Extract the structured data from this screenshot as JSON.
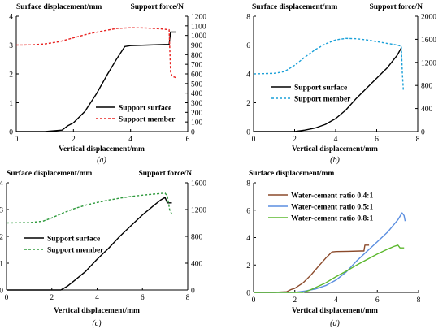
{
  "chart_data": [
    {
      "id": "a",
      "type": "line",
      "caption": "(a)",
      "xlabel": "Vertical displacement/mm",
      "ylabel_left": "Surface displacement/mm",
      "ylabel_right": "Support force/N",
      "xlim": [
        0,
        6
      ],
      "xticks": [
        "0",
        "2",
        "4",
        "6"
      ],
      "ylim_left": [
        0,
        4
      ],
      "yticks_left": [
        "0",
        "1",
        "2",
        "3",
        "4"
      ],
      "ylim_right": [
        0,
        1200
      ],
      "yticks_right": [
        "0",
        "100",
        "200",
        "300",
        "400",
        "500",
        "600",
        "700",
        "800",
        "900",
        "1000",
        "1100",
        "1200"
      ],
      "grid": false,
      "legend_position": "bottom-right",
      "series": [
        {
          "name": "Support surface",
          "axis": "left",
          "color": "#000000",
          "dash": "solid",
          "x": [
            0,
            1,
            1.6,
            1.8,
            2.0,
            2.4,
            2.8,
            3.2,
            3.5,
            3.8,
            4.0,
            4.6,
            5.2,
            5.35,
            5.4,
            5.6
          ],
          "y": [
            0,
            0,
            0.05,
            0.2,
            0.3,
            0.7,
            1.3,
            2.0,
            2.5,
            2.95,
            2.98,
            3.0,
            3.02,
            3.02,
            3.45,
            3.45
          ]
        },
        {
          "name": "Support member",
          "axis": "right",
          "color": "#e8211f",
          "dash": "dashed",
          "x": [
            0,
            0.5,
            1,
            1.5,
            2,
            2.5,
            3,
            3.5,
            4,
            4.5,
            5,
            5.35,
            5.4,
            5.45,
            5.6
          ],
          "y": [
            900,
            902,
            912,
            935,
            975,
            1015,
            1045,
            1072,
            1080,
            1078,
            1070,
            1060,
            620,
            575,
            560
          ]
        }
      ]
    },
    {
      "id": "b",
      "type": "line",
      "caption": "(b)",
      "xlabel": "Vertical displacement/mm",
      "ylabel_left": "Surface displacement/mm",
      "ylabel_right": "Support force/N",
      "xlim": [
        0,
        8
      ],
      "xticks": [
        "0",
        "2",
        "4",
        "6",
        "8"
      ],
      "ylim_left": [
        0,
        8
      ],
      "yticks_left": [
        "0",
        "2",
        "4",
        "6",
        "8"
      ],
      "ylim_right": [
        0,
        2000
      ],
      "yticks_right": [
        "0",
        "400",
        "800",
        "1200",
        "1600",
        "2000"
      ],
      "grid": false,
      "legend_position": "bottom-center",
      "series": [
        {
          "name": "Support surface",
          "axis": "left",
          "color": "#000000",
          "dash": "solid",
          "x": [
            0,
            2,
            2.5,
            3,
            3.5,
            4,
            4.5,
            5,
            5.5,
            6,
            6.5,
            7,
            7.2
          ],
          "y": [
            0,
            0,
            0.1,
            0.25,
            0.5,
            0.9,
            1.5,
            2.3,
            3.0,
            3.7,
            4.4,
            5.3,
            5.8
          ]
        },
        {
          "name": "Support member",
          "axis": "right",
          "color": "#1aa0d8",
          "dash": "dashed",
          "x": [
            0,
            1,
            1.5,
            2,
            2.5,
            3,
            3.5,
            4,
            4.5,
            5,
            5.5,
            6,
            6.5,
            7,
            7.2,
            7.25,
            7.3
          ],
          "y": [
            1000,
            1010,
            1040,
            1150,
            1290,
            1420,
            1520,
            1590,
            1615,
            1610,
            1590,
            1560,
            1530,
            1500,
            1480,
            1000,
            720
          ]
        }
      ]
    },
    {
      "id": "c",
      "type": "line",
      "caption": "(c)",
      "xlabel": "Vertical displacement/mm",
      "ylabel_left": "Surface displacement/mm",
      "ylabel_right": "Support force/N",
      "xlim": [
        0,
        8
      ],
      "xticks": [
        "0",
        "2",
        "4",
        "6",
        "8"
      ],
      "ylim_left": [
        0,
        4
      ],
      "yticks_left": [
        "0",
        "1",
        "2",
        "3",
        "4"
      ],
      "ylim_right": [
        0,
        1600
      ],
      "yticks_right": [
        "0",
        "400",
        "800",
        "1200",
        "1600"
      ],
      "grid": false,
      "legend_position": "bottom-center",
      "series": [
        {
          "name": "Support surface",
          "axis": "left",
          "color": "#000000",
          "dash": "solid",
          "x": [
            0,
            2.4,
            2.7,
            3,
            3.5,
            4,
            4.5,
            5,
            5.5,
            6,
            6.5,
            6.8,
            7.0,
            7.1,
            7.3
          ],
          "y": [
            0,
            0,
            0.15,
            0.35,
            0.7,
            1.15,
            1.55,
            2.0,
            2.4,
            2.8,
            3.15,
            3.35,
            3.45,
            3.25,
            3.25
          ]
        },
        {
          "name": "Support member",
          "axis": "right",
          "color": "#2e9a3c",
          "dash": "dashed",
          "x": [
            0,
            1,
            1.6,
            2,
            2.5,
            3,
            3.5,
            4,
            4.5,
            5,
            5.5,
            6,
            6.5,
            7.0,
            7.1,
            7.2,
            7.3
          ],
          "y": [
            1000,
            1005,
            1025,
            1075,
            1150,
            1215,
            1265,
            1305,
            1340,
            1370,
            1395,
            1415,
            1430,
            1445,
            1400,
            1200,
            1130
          ]
        }
      ]
    },
    {
      "id": "d",
      "type": "line",
      "caption": "(d)",
      "xlabel": "Vertical displacement/mm",
      "ylabel_left": "Surface displacement/mm",
      "xlim": [
        0,
        8
      ],
      "xticks": [
        "0",
        "2",
        "4",
        "6",
        "8"
      ],
      "ylim_left": [
        0,
        8
      ],
      "yticks_left": [
        "0",
        "2",
        "4",
        "6",
        "8"
      ],
      "grid": false,
      "legend_position": "top-left",
      "series": [
        {
          "name": "Water-cement ratio 0.4:1",
          "axis": "left",
          "color": "#8b4a2b",
          "dash": "solid",
          "x": [
            0,
            1,
            1.6,
            1.8,
            2.0,
            2.4,
            2.8,
            3.2,
            3.5,
            3.8,
            4.0,
            4.6,
            5.2,
            5.35,
            5.4,
            5.6
          ],
          "y": [
            0,
            0,
            0.05,
            0.2,
            0.3,
            0.7,
            1.3,
            2.0,
            2.5,
            2.95,
            2.98,
            3.0,
            3.02,
            3.02,
            3.45,
            3.45
          ]
        },
        {
          "name": "Water-cement ratio 0.5:1",
          "axis": "left",
          "color": "#5b8ee0",
          "dash": "solid",
          "x": [
            0,
            2,
            2.5,
            3,
            3.5,
            4,
            4.5,
            5,
            5.5,
            6,
            6.5,
            7,
            7.2,
            7.3,
            7.35
          ],
          "y": [
            0,
            0,
            0.1,
            0.25,
            0.5,
            0.9,
            1.5,
            2.3,
            3.0,
            3.7,
            4.4,
            5.3,
            5.8,
            5.6,
            5.2
          ]
        },
        {
          "name": "Water-cement ratio 0.8:1",
          "axis": "left",
          "color": "#5cb82e",
          "dash": "solid",
          "x": [
            0,
            2.4,
            2.7,
            3,
            3.5,
            4,
            4.5,
            5,
            5.5,
            6,
            6.5,
            6.8,
            7.0,
            7.1,
            7.3
          ],
          "y": [
            0,
            0,
            0.15,
            0.35,
            0.7,
            1.15,
            1.55,
            2.0,
            2.4,
            2.8,
            3.15,
            3.35,
            3.45,
            3.25,
            3.25
          ]
        }
      ]
    }
  ]
}
